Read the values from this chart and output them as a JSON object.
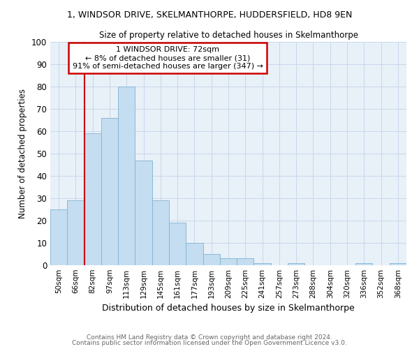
{
  "title": "1, WINDSOR DRIVE, SKELMANTHORPE, HUDDERSFIELD, HD8 9EN",
  "subtitle": "Size of property relative to detached houses in Skelmanthorpe",
  "xlabel": "Distribution of detached houses by size in Skelmanthorpe",
  "ylabel": "Number of detached properties",
  "bin_labels": [
    "50sqm",
    "66sqm",
    "82sqm",
    "97sqm",
    "113sqm",
    "129sqm",
    "145sqm",
    "161sqm",
    "177sqm",
    "193sqm",
    "209sqm",
    "225sqm",
    "241sqm",
    "257sqm",
    "273sqm",
    "288sqm",
    "304sqm",
    "320sqm",
    "336sqm",
    "352sqm",
    "368sqm"
  ],
  "bar_heights": [
    25,
    29,
    59,
    66,
    80,
    47,
    29,
    19,
    10,
    5,
    3,
    3,
    1,
    0,
    1,
    0,
    0,
    0,
    1,
    0,
    1
  ],
  "bar_color": "#c5ddf0",
  "bar_edge_color": "#7fb3d3",
  "ylim": [
    0,
    100
  ],
  "yticks": [
    0,
    10,
    20,
    30,
    40,
    50,
    60,
    70,
    80,
    90,
    100
  ],
  "property_line_x": 1.5,
  "annotation_title": "1 WINDSOR DRIVE: 72sqm",
  "annotation_line1": "← 8% of detached houses are smaller (31)",
  "annotation_line2": "91% of semi-detached houses are larger (347) →",
  "annotation_box_color": "#ffffff",
  "annotation_box_edge": "#cc0000",
  "red_line_color": "#cc0000",
  "footer1": "Contains HM Land Registry data © Crown copyright and database right 2024.",
  "footer2": "Contains public sector information licensed under the Open Government Licence v3.0.",
  "bg_color": "#e8f0f8",
  "grid_color": "#c8d8eb"
}
